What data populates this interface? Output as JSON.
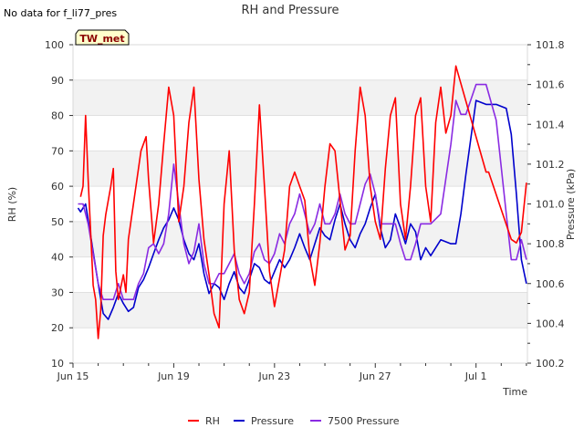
{
  "chart_data": {
    "type": "line",
    "title": "RH and Pressure",
    "note": "No data for f_li77_pres",
    "badge": "TW_met",
    "xlabel": "Time",
    "ylabel": "RH (%)",
    "y2label": "Pressure (kPa)",
    "x_ticks": [
      "Jun 15",
      "Jun 19",
      "Jun 23",
      "Jun 27",
      "Jul 1"
    ],
    "y_ticks": [
      "10",
      "20",
      "30",
      "40",
      "50",
      "60",
      "70",
      "80",
      "90",
      "100"
    ],
    "y2_ticks": [
      "100.2",
      "100.4",
      "100.6",
      "100.8",
      "101.0",
      "101.2",
      "101.4",
      "101.6",
      "101.8"
    ],
    "ylim": [
      10,
      100
    ],
    "y2lim": [
      100.2,
      101.8
    ],
    "xlim_days": [
      15,
      33
    ],
    "x_origin": "Jun 15",
    "grid": true,
    "legend_position": "bottom",
    "colors": {
      "RH": "#ff0000",
      "Pressure": "#0000cc",
      "7500 Pressure": "#8a2be2"
    },
    "series": [
      {
        "name": "RH",
        "axis": "left",
        "x": [
          15.3,
          15.4,
          15.5,
          15.6,
          15.8,
          15.9,
          16.0,
          16.1,
          16.2,
          16.3,
          16.5,
          16.6,
          16.7,
          16.8,
          17.0,
          17.1,
          17.2,
          17.5,
          17.7,
          17.9,
          18.0,
          18.2,
          18.4,
          18.6,
          18.8,
          19.0,
          19.2,
          19.4,
          19.6,
          19.8,
          20.0,
          20.2,
          20.4,
          20.6,
          20.8,
          21.0,
          21.2,
          21.4,
          21.6,
          21.8,
          22.0,
          22.2,
          22.4,
          22.6,
          22.8,
          23.0,
          23.2,
          23.4,
          23.6,
          23.8,
          24.0,
          24.2,
          24.4,
          24.6,
          24.8,
          25.0,
          25.2,
          25.4,
          25.6,
          25.8,
          26.0,
          26.2,
          26.4,
          26.6,
          26.8,
          27.0,
          27.2,
          27.4,
          27.6,
          27.8,
          28.0,
          28.2,
          28.4,
          28.6,
          28.8,
          29.0,
          29.2,
          29.4,
          29.6,
          29.8,
          30.0,
          30.2,
          31.4,
          31.5,
          32.4,
          32.6,
          32.8,
          33.0
        ],
        "y": [
          57,
          60,
          80,
          62,
          32,
          28,
          17,
          25,
          46,
          52,
          60,
          65,
          36,
          28,
          35,
          30,
          45,
          60,
          70,
          74,
          62,
          44,
          55,
          72,
          88,
          80,
          50,
          60,
          78,
          88,
          62,
          45,
          35,
          24,
          20,
          55,
          70,
          42,
          28,
          24,
          30,
          55,
          83,
          60,
          36,
          26,
          34,
          42,
          60,
          64,
          60,
          56,
          40,
          32,
          44,
          60,
          72,
          70,
          56,
          42,
          46,
          70,
          88,
          80,
          60,
          50,
          45,
          65,
          80,
          85,
          55,
          45,
          60,
          80,
          85,
          60,
          50,
          78,
          88,
          75,
          80,
          94,
          64,
          64,
          45,
          44,
          47,
          61
        ]
      },
      {
        "name": "Pressure",
        "axis": "right",
        "x": [
          15.2,
          15.3,
          15.4,
          15.5,
          15.6,
          15.8,
          16.0,
          16.2,
          16.4,
          16.6,
          16.8,
          17.0,
          17.2,
          17.4,
          17.6,
          17.8,
          18.0,
          18.2,
          18.4,
          18.6,
          18.8,
          19.0,
          19.2,
          19.4,
          19.6,
          19.8,
          20.0,
          20.2,
          20.4,
          20.6,
          20.8,
          21.0,
          21.2,
          21.4,
          21.6,
          21.8,
          22.0,
          22.2,
          22.4,
          22.6,
          22.8,
          23.0,
          23.2,
          23.4,
          23.6,
          23.8,
          24.0,
          24.2,
          24.4,
          24.6,
          24.8,
          25.0,
          25.2,
          25.4,
          25.6,
          25.8,
          26.0,
          26.2,
          26.4,
          26.6,
          26.8,
          27.0,
          27.2,
          27.4,
          27.6,
          27.8,
          28.0,
          28.2,
          28.4,
          28.6,
          28.8,
          29.0,
          29.2,
          29.6,
          30.0,
          30.2,
          30.4,
          30.6,
          31.0,
          31.4,
          31.8,
          32.2,
          32.4,
          32.6,
          32.8,
          33.0
        ],
        "y": [
          100.98,
          100.96,
          100.98,
          101.0,
          100.92,
          100.76,
          100.6,
          100.45,
          100.42,
          100.48,
          100.55,
          100.5,
          100.46,
          100.48,
          100.58,
          100.62,
          100.68,
          100.75,
          100.82,
          100.88,
          100.92,
          100.98,
          100.92,
          100.82,
          100.75,
          100.72,
          100.8,
          100.65,
          100.55,
          100.6,
          100.58,
          100.52,
          100.6,
          100.66,
          100.58,
          100.55,
          100.62,
          100.7,
          100.68,
          100.62,
          100.6,
          100.66,
          100.72,
          100.68,
          100.72,
          100.78,
          100.85,
          100.78,
          100.72,
          100.8,
          100.88,
          100.84,
          100.82,
          100.92,
          101.0,
          100.9,
          100.82,
          100.78,
          100.85,
          100.9,
          100.98,
          101.05,
          100.88,
          100.78,
          100.82,
          100.95,
          100.88,
          100.8,
          100.9,
          100.86,
          100.72,
          100.78,
          100.74,
          100.82,
          100.8,
          100.8,
          100.95,
          101.15,
          101.52,
          101.5,
          101.5,
          101.48,
          101.35,
          101.05,
          100.72,
          100.6
        ]
      },
      {
        "name": "7500 Pressure",
        "axis": "right",
        "x": [
          15.2,
          15.4,
          15.6,
          15.8,
          16.0,
          16.2,
          16.4,
          16.6,
          16.8,
          17.0,
          17.2,
          17.4,
          17.6,
          17.8,
          18.0,
          18.2,
          18.4,
          18.6,
          18.8,
          19.0,
          19.2,
          19.4,
          19.6,
          19.8,
          20.0,
          20.2,
          20.4,
          20.6,
          20.8,
          21.0,
          21.2,
          21.4,
          21.6,
          21.8,
          22.0,
          22.2,
          22.4,
          22.6,
          22.8,
          23.0,
          23.2,
          23.4,
          23.6,
          23.8,
          24.0,
          24.2,
          24.4,
          24.6,
          24.8,
          25.0,
          25.2,
          25.4,
          25.6,
          25.8,
          26.0,
          26.2,
          26.4,
          26.6,
          26.8,
          27.0,
          27.2,
          27.4,
          27.6,
          27.8,
          28.0,
          28.2,
          28.4,
          28.6,
          28.8,
          29.0,
          29.2,
          29.6,
          30.0,
          30.2,
          30.4,
          30.6,
          31.0,
          31.4,
          31.8,
          32.2,
          32.4,
          32.6,
          32.8,
          33.0
        ],
        "y": [
          101.0,
          101.0,
          100.9,
          100.75,
          100.6,
          100.52,
          100.52,
          100.52,
          100.6,
          100.52,
          100.52,
          100.52,
          100.6,
          100.65,
          100.78,
          100.8,
          100.75,
          100.8,
          100.95,
          101.2,
          101.0,
          100.8,
          100.7,
          100.76,
          100.9,
          100.7,
          100.6,
          100.6,
          100.65,
          100.65,
          100.7,
          100.75,
          100.65,
          100.6,
          100.65,
          100.76,
          100.8,
          100.72,
          100.7,
          100.75,
          100.85,
          100.8,
          100.9,
          100.95,
          101.05,
          100.95,
          100.85,
          100.9,
          101.0,
          100.9,
          100.9,
          100.95,
          101.05,
          100.95,
          100.9,
          100.9,
          101.0,
          101.1,
          101.15,
          101.05,
          100.9,
          100.9,
          100.9,
          100.9,
          100.8,
          100.72,
          100.72,
          100.8,
          100.9,
          100.9,
          100.9,
          100.95,
          101.3,
          101.52,
          101.45,
          101.45,
          101.6,
          101.6,
          101.42,
          100.95,
          100.72,
          100.72,
          100.82,
          100.72
        ]
      }
    ]
  }
}
